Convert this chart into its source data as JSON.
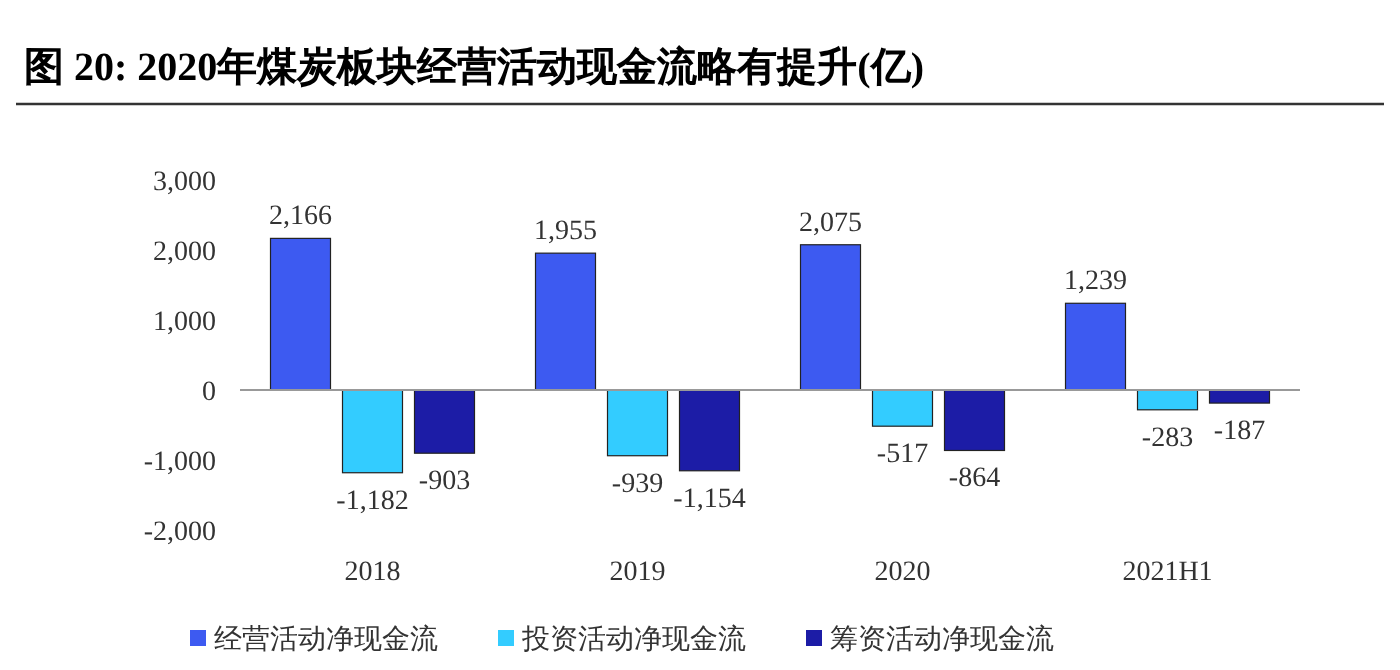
{
  "chart_data": {
    "type": "bar",
    "title": "图  20: 2020年煤炭板块经营活动现金流略有提升(亿)",
    "categories": [
      "2018",
      "2019",
      "2020",
      "2021H1"
    ],
    "series": [
      {
        "name": "经营活动净现金流",
        "color": "#3d5af1",
        "values": [
          2166,
          1955,
          2075,
          1239
        ],
        "value_labels": [
          "2,166",
          "1,955",
          "2,075",
          "1,239"
        ]
      },
      {
        "name": "投资活动净现金流",
        "color": "#33ccff",
        "values": [
          -1182,
          -939,
          -517,
          -283
        ],
        "value_labels": [
          "-1,182",
          "-939",
          "-517",
          "-283"
        ]
      },
      {
        "name": "筹资活动净现金流",
        "color": "#1c1ca6",
        "values": [
          -903,
          -1154,
          -864,
          -187
        ],
        "value_labels": [
          "-903",
          "-1,154",
          "-864",
          "-187"
        ]
      }
    ],
    "ylim": [
      -2000,
      3000
    ],
    "yticks": [
      {
        "value": -2000,
        "label": "-2,000"
      },
      {
        "value": -1000,
        "label": "-1,000"
      },
      0,
      {
        "value": 1000,
        "label": "1,000"
      },
      {
        "value": 2000,
        "label": "2,000"
      },
      {
        "value": 3000,
        "label": "3,000"
      }
    ],
    "legend": "bottom"
  }
}
